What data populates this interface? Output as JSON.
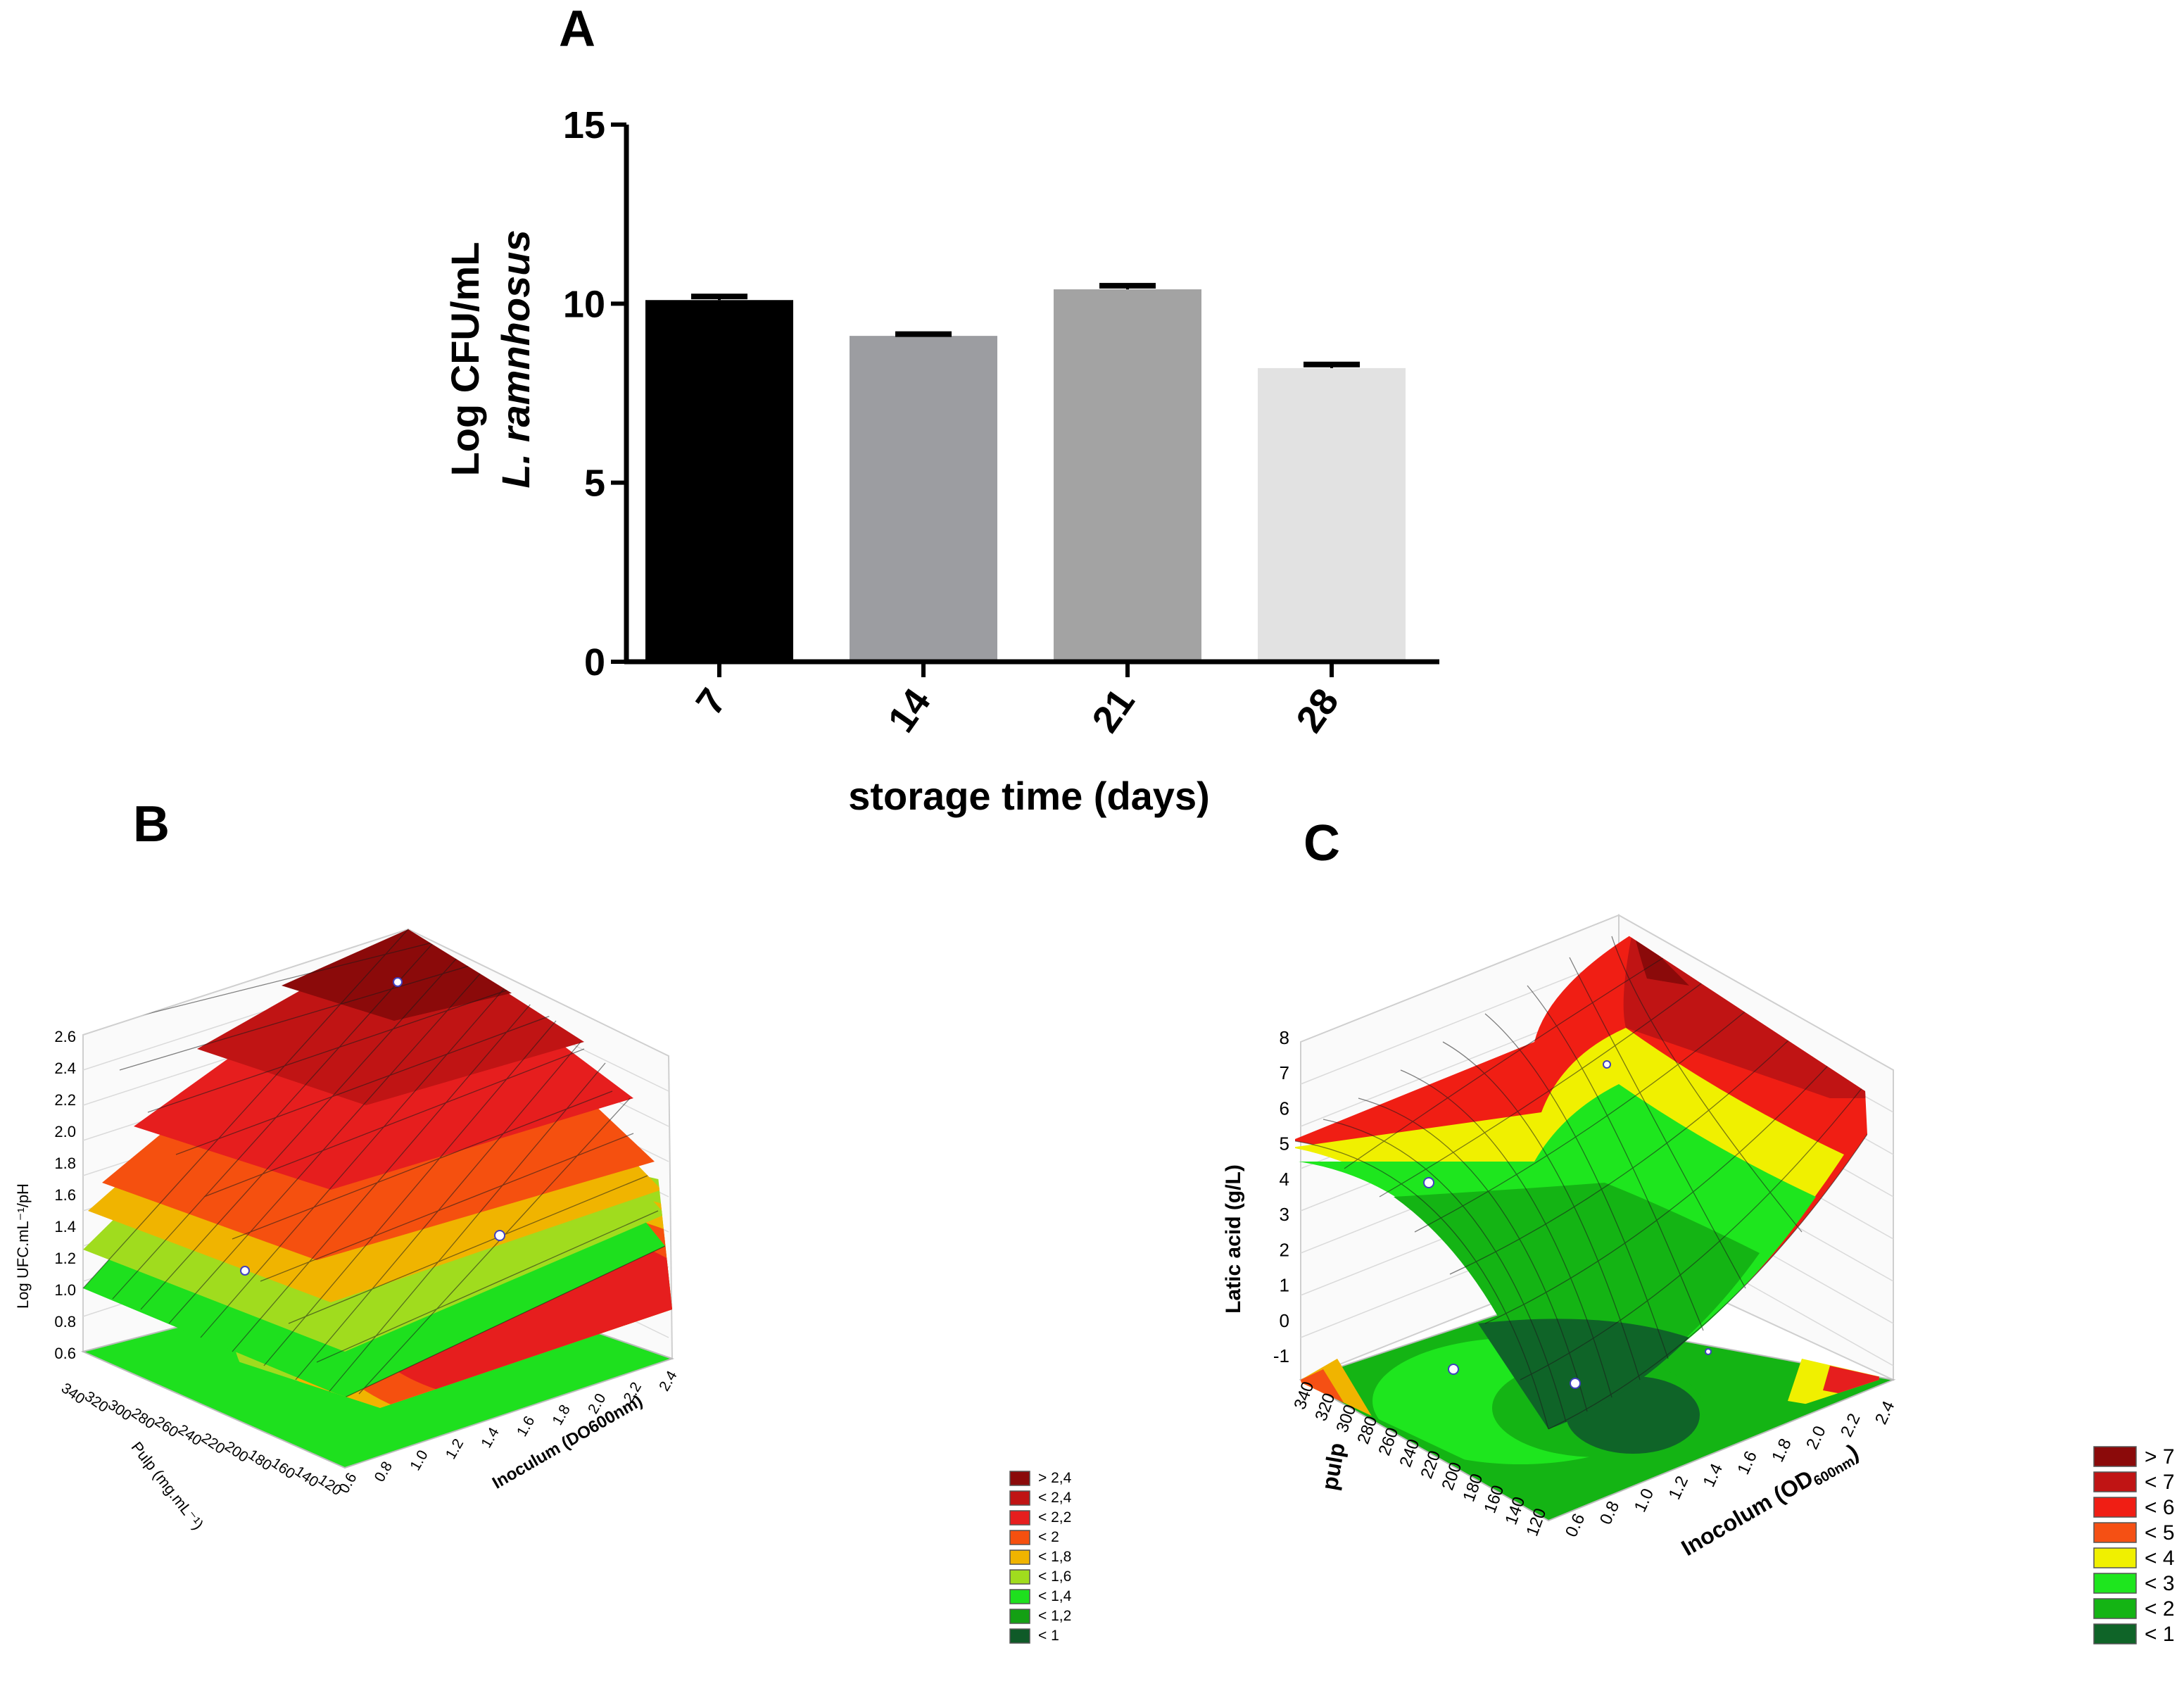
{
  "panels": {
    "a": {
      "letter": "A"
    },
    "b": {
      "letter": "B"
    },
    "c": {
      "letter": "C"
    }
  },
  "chart_data": [
    {
      "type": "bar",
      "title": "",
      "categories": [
        "7",
        "14",
        "21",
        "28"
      ],
      "values": [
        10.1,
        9.1,
        10.4,
        8.2
      ],
      "errors": [
        0.1,
        0.05,
        0.1,
        0.1
      ],
      "bar_colors": [
        "#000000",
        "#9c9da1",
        "#a3a3a3",
        "#e2e2e2"
      ],
      "xlabel": "storage time (days)",
      "ylabel_line1": "Log CFU/mL",
      "ylabel_line2": "L. ramnhosus",
      "ylim": [
        0,
        15
      ],
      "yticks": [
        0,
        5,
        10,
        15
      ],
      "grid": false,
      "legend": "none"
    },
    {
      "type": "surface3d",
      "title": "",
      "zlabel": "Log UFC.mL⁻¹/pH",
      "ylabel": "Pulp (mg.mL⁻¹)",
      "xlabel": "Inoculum (DO600nm)",
      "zticks": [
        "0.6",
        "0.8",
        "1.0",
        "1.2",
        "1.4",
        "1.6",
        "1.8",
        "2.0",
        "2.2",
        "2.4",
        "2.6"
      ],
      "yticks": [
        "120",
        "140",
        "160",
        "180",
        "200",
        "220",
        "240",
        "260",
        "280",
        "300",
        "320",
        "340"
      ],
      "xticks": [
        "0.6",
        "0.8",
        "1.0",
        "1.2",
        "1.4",
        "1.6",
        "1.8",
        "2.0",
        "2.2",
        "2.4"
      ],
      "zlim": [
        0.6,
        2.6
      ],
      "legend": "bottom-right",
      "legend_entries": [
        {
          "label": "> 2,4",
          "color": "#8b0a0a"
        },
        {
          "label": "< 2,4",
          "color": "#c01414"
        },
        {
          "label": "< 2,2",
          "color": "#e61e1e"
        },
        {
          "label": "< 2",
          "color": "#f5500f"
        },
        {
          "label": "< 1,8",
          "color": "#f0b400"
        },
        {
          "label": "< 1,6",
          "color": "#a0dc1e"
        },
        {
          "label": "< 1,4",
          "color": "#1ee01e"
        },
        {
          "label": "< 1,2",
          "color": "#14a014"
        },
        {
          "label": "< 1",
          "color": "#0f5a28"
        }
      ]
    },
    {
      "type": "surface3d",
      "title": "",
      "zlabel": "Latic acid (g/L)",
      "ylabel": "pulp",
      "xlabel": "Inocolum (OD",
      "xlabel_sub": "600nm",
      "xlabel_end": ")",
      "zticks": [
        "-1",
        "0",
        "1",
        "2",
        "3",
        "4",
        "5",
        "6",
        "7",
        "8"
      ],
      "yticks": [
        "120",
        "140",
        "160",
        "180",
        "200",
        "220",
        "240",
        "260",
        "280",
        "300",
        "320",
        "340"
      ],
      "xticks": [
        "0.6",
        "0.8",
        "1.0",
        "1.2",
        "1.4",
        "1.6",
        "1.8",
        "2.0",
        "2.2",
        "2.4"
      ],
      "zlim": [
        -1,
        8
      ],
      "legend": "bottom-right",
      "legend_entries": [
        {
          "label": "> 7",
          "color": "#8b0a0a"
        },
        {
          "label": "< 7",
          "color": "#c01414"
        },
        {
          "label": "< 6",
          "color": "#f01e14"
        },
        {
          "label": "< 5",
          "color": "#f55014"
        },
        {
          "label": "< 4",
          "color": "#f0f000"
        },
        {
          "label": "< 3",
          "color": "#1ee61e"
        },
        {
          "label": "< 2",
          "color": "#14b414"
        },
        {
          "label": "< 1",
          "color": "#0f6428"
        }
      ]
    }
  ]
}
